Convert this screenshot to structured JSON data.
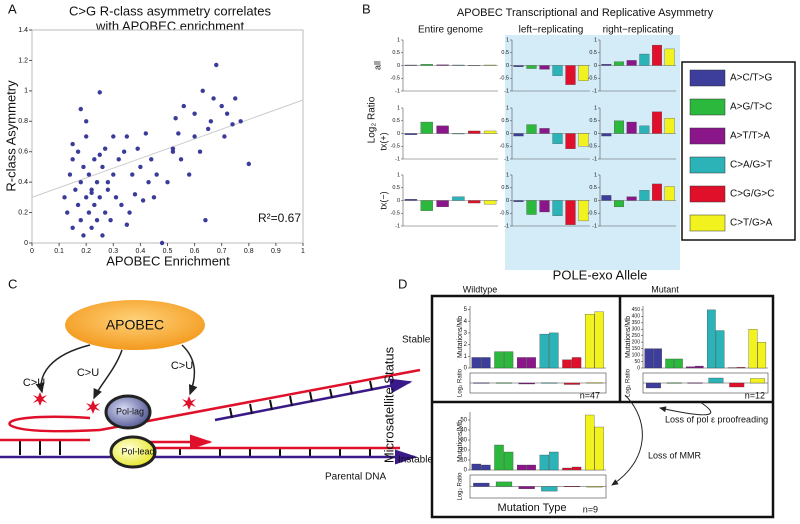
{
  "panel_labels": [
    "A",
    "B",
    "C",
    "D"
  ],
  "chart_data": [
    {
      "type": "scatter",
      "title": [
        "C>G R-class asymmetry correlates",
        "with APOBEC enrichment"
      ],
      "xlabel": "APOBEC Enrichment",
      "ylabel": "R-class Asymmetry",
      "annotation": "R²=0.67",
      "color": "#3b3b9a",
      "x": [
        0.12,
        0.13,
        0.14,
        0.15,
        0.15,
        0.16,
        0.17,
        0.17,
        0.18,
        0.18,
        0.19,
        0.19,
        0.2,
        0.2,
        0.21,
        0.21,
        0.22,
        0.22,
        0.23,
        0.23,
        0.24,
        0.24,
        0.25,
        0.25,
        0.26,
        0.26,
        0.27,
        0.27,
        0.28,
        0.28,
        0.29,
        0.3,
        0.3,
        0.31,
        0.32,
        0.33,
        0.34,
        0.35,
        0.36,
        0.37,
        0.38,
        0.39,
        0.4,
        0.41,
        0.42,
        0.43,
        0.44,
        0.45,
        0.46,
        0.48,
        0.5,
        0.52,
        0.53,
        0.55,
        0.56,
        0.58,
        0.6,
        0.62,
        0.63,
        0.65,
        0.66,
        0.67,
        0.68,
        0.7,
        0.71,
        0.72,
        0.74,
        0.75,
        0.77,
        0.8,
        0.52,
        0.54,
        0.6,
        0.64,
        0.35,
        0.15,
        0.2,
        0.25,
        0.18,
        0.22
      ],
      "y": [
        0.3,
        0.2,
        0.45,
        0.1,
        0.55,
        0.35,
        0.25,
        0.6,
        0.15,
        0.4,
        0.05,
        0.5,
        0.3,
        0.7,
        0.2,
        0.45,
        0.1,
        0.35,
        0.25,
        0.55,
        0.15,
        0.4,
        0.3,
        0.99,
        0.05,
        0.5,
        0.2,
        0.62,
        0.35,
        0.4,
        0.15,
        0.45,
        0.7,
        0.3,
        0.55,
        0.25,
        0.6,
        0.7,
        0.2,
        0.45,
        0.32,
        0.62,
        0.5,
        0.28,
        0.72,
        0.4,
        0.55,
        0.3,
        0.45,
        0.0,
        0.4,
        0.6,
        0.82,
        0.55,
        0.9,
        0.45,
        0.7,
        0.6,
        1.0,
        0.75,
        0.8,
        0.95,
        1.17,
        0.9,
        0.7,
        0.85,
        0.78,
        0.95,
        0.8,
        0.52,
        0.62,
        0.72,
        0.85,
        0.15,
        0.12,
        0.65,
        0.8,
        0.58,
        0.88,
        0.33
      ],
      "trendline": {
        "x": [
          0,
          1
        ],
        "y": [
          0.3,
          0.94
        ]
      },
      "xlim": [
        0,
        1
      ],
      "xticks": [
        0,
        0.1,
        0.2,
        0.3,
        0.4,
        0.5,
        0.6,
        0.7,
        0.8,
        0.9,
        1
      ],
      "ylim": [
        0,
        1.4
      ],
      "yticks": [
        0,
        0.2,
        0.4,
        0.6,
        0.8,
        1,
        1.2,
        1.4
      ]
    },
    {
      "type": "faceted-bar",
      "title": "APOBEC Transcriptional and Replicative Asymmetry",
      "ylabel": "Log₂ Ratio",
      "column_titles": [
        "Entire genome",
        "left−replicating",
        "right−replicating"
      ],
      "row_labels": [
        "all",
        "tx(+)",
        "tx(−)"
      ],
      "ylim": [
        -1,
        1
      ],
      "yticks": [
        -1,
        -0.5,
        0,
        0.5,
        1
      ],
      "series": [
        {
          "name": "A>C/T>G",
          "color": "#3d3d9c"
        },
        {
          "name": "A>G/T>C",
          "color": "#2cb83c"
        },
        {
          "name": "A>T/T>A",
          "color": "#8a168a"
        },
        {
          "name": "C>A/G>T",
          "color": "#2bb3b8"
        },
        {
          "name": "C>G/G>C",
          "color": "#e0102a"
        },
        {
          "name": "C>T/G>A",
          "color": "#f2f21e"
        }
      ],
      "facets": [
        [
          [
            0.02,
            0.05,
            0.03,
            0.02,
            0.01,
            0.02
          ],
          [
            -0.05,
            -0.12,
            -0.15,
            -0.4,
            -0.75,
            -0.6
          ],
          [
            0.05,
            0.15,
            0.2,
            0.45,
            0.8,
            0.65
          ]
        ],
        [
          [
            -0.05,
            0.45,
            0.3,
            -0.02,
            0.1,
            0.1
          ],
          [
            -0.1,
            0.35,
            0.2,
            -0.4,
            -0.6,
            -0.5
          ],
          [
            -0.1,
            0.5,
            0.45,
            0.3,
            0.85,
            0.6
          ]
        ],
        [
          [
            0.05,
            -0.4,
            -0.25,
            0.15,
            -0.1,
            -0.15
          ],
          [
            -0.05,
            -0.55,
            -0.45,
            -0.6,
            -0.95,
            -0.8
          ],
          [
            0.2,
            -0.25,
            0.15,
            0.4,
            0.65,
            0.55
          ]
        ]
      ]
    },
    {
      "type": "paired-bar",
      "title": "POLE-exo Allele",
      "column_titles": [
        "Wildtype",
        "Mutant"
      ],
      "row_titles": [
        "Stable",
        "Instable"
      ],
      "ylabel_outer": "Microsatellite Status",
      "ylabel": "Mutations/Mb",
      "ratio_label": "Log₂ Ratio",
      "xlabel": "Mutation Type",
      "annotations": [
        "Loss of pol ε proofreading",
        "Loss of MMR"
      ],
      "colors": [
        "#3d3d9c",
        "#2cb83c",
        "#8a168a",
        "#2bb3b8",
        "#e0102a",
        "#f2f21e"
      ],
      "ratio_ylim": [
        -1,
        1
      ],
      "subplots": [
        {
          "label": "n=47",
          "ylim": [
            0,
            5.3
          ],
          "yticks": [
            0,
            1,
            2,
            3,
            4,
            5
          ],
          "values": [
            0.9,
            0.9,
            1.4,
            1.4,
            0.9,
            0.9,
            2.9,
            3.0,
            0.7,
            0.9,
            4.6,
            4.8
          ],
          "ratio": [
            0.02,
            0.02,
            -0.1,
            0.02,
            -0.15,
            0.05
          ]
        },
        {
          "label": "n=12",
          "ylim": [
            0,
            480
          ],
          "yticks": [
            0,
            50,
            100,
            150,
            200,
            250,
            300,
            350,
            400,
            450
          ],
          "values": [
            150,
            150,
            70,
            70,
            10,
            15,
            450,
            290,
            3,
            5,
            300,
            200
          ],
          "ratio": [
            -0.5,
            0.02,
            0.02,
            0.5,
            -0.4,
            0.45
          ]
        },
        {
          "label": "n=9",
          "ylim": [
            0,
            58
          ],
          "yticks": [
            0,
            10,
            20,
            30,
            40,
            50
          ],
          "values": [
            6,
            5,
            25,
            18,
            5,
            5,
            15,
            18,
            2,
            3,
            55,
            43
          ],
          "ratio": [
            0.3,
            0.4,
            -0.2,
            -0.4,
            0.02,
            -0.05
          ]
        }
      ]
    }
  ],
  "diagram": {
    "enzyme": "APOBEC",
    "sites": [
      "C>U",
      "C>U",
      "C>U"
    ],
    "polymerases": [
      "Pol-lag",
      "Pol-lead"
    ],
    "strand_label": "Parental DNA"
  }
}
